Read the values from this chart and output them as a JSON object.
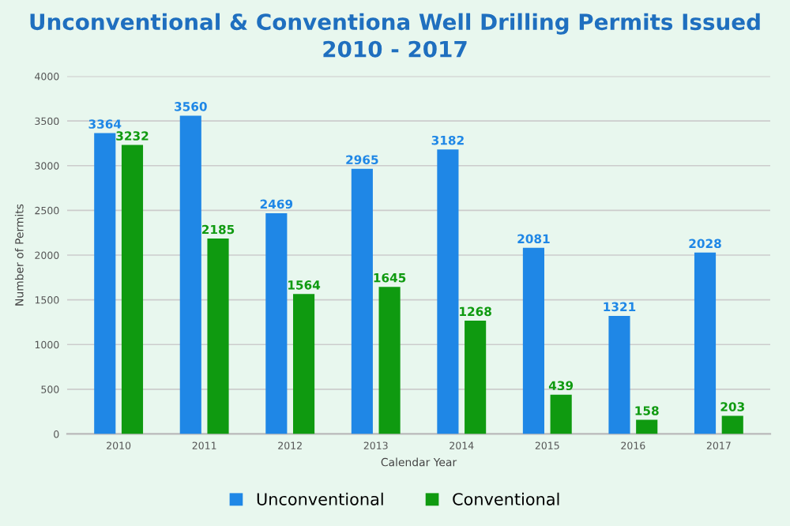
{
  "chart_data": {
    "type": "bar",
    "title": "Unconventional & Conventiona Well Drilling Permits Issued\n2010 - 2017",
    "xlabel": "Calendar Year",
    "ylabel": "Number of Permits",
    "categories": [
      "2010",
      "2011",
      "2012",
      "2013",
      "2014",
      "2015",
      "2016",
      "2017"
    ],
    "series": [
      {
        "name": "Unconventional",
        "color": "#1f87e6",
        "values": [
          3364,
          3560,
          2469,
          2965,
          3182,
          2081,
          1321,
          2028
        ]
      },
      {
        "name": "Conventional",
        "color": "#0f9a10",
        "values": [
          3232,
          2185,
          1564,
          1645,
          1268,
          439,
          158,
          203
        ]
      }
    ],
    "ylim": [
      0,
      4000
    ],
    "yticks": [
      0,
      500,
      1000,
      1500,
      2000,
      2500,
      3000,
      3500,
      4000
    ],
    "grid": "y",
    "legend": "bottom",
    "data_labels": true
  }
}
